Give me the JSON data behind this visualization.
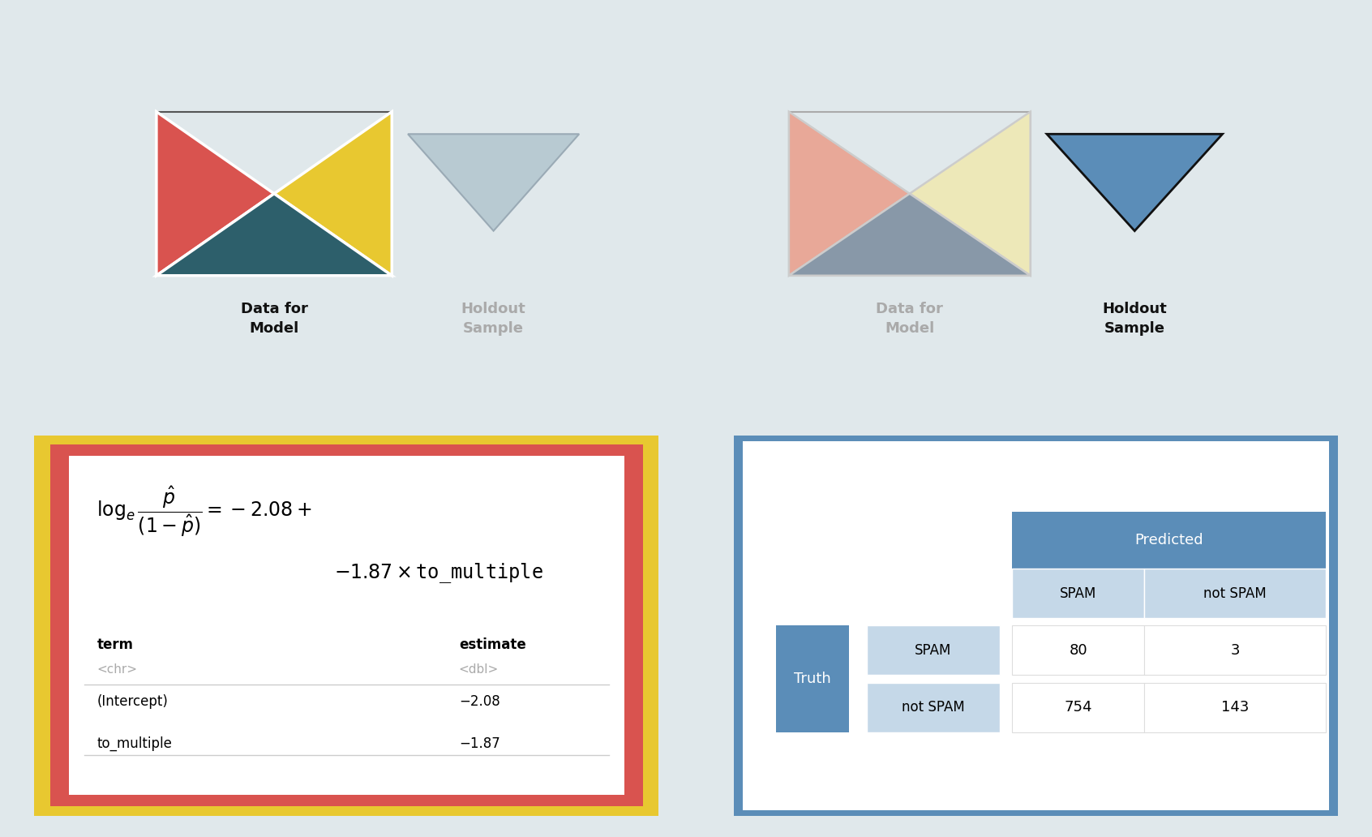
{
  "bg_color": "#e0e8eb",
  "panel_bg": "#e8e8e8",
  "left_panel": {
    "tangram_colors": {
      "red": "#d9534f",
      "yellow": "#e8c830",
      "teal": "#2d5f6b"
    },
    "holdout_color": "#b8cad2",
    "holdout_border": "#9aaab5",
    "data_for_model_text": "Data for\nModel",
    "holdout_text": "Holdout\nSample",
    "data_text_color": "#111111",
    "holdout_text_color": "#aaaaaa"
  },
  "right_panel": {
    "tangram_colors": {
      "red": "#e8a898",
      "yellow": "#ede8b8",
      "teal": "#8898a8"
    },
    "holdout_color": "#5b8db8",
    "holdout_border": "#111111",
    "data_for_model_text": "Data for\nModel",
    "holdout_text": "Holdout\nSample",
    "data_text_color": "#aaaaaa",
    "holdout_text_color": "#111111"
  },
  "outer_border_color": "#e8c830",
  "inner_border_color": "#d9534f",
  "right_box_border_color": "#5b8db8",
  "confusion_header": "Predicted",
  "confusion_col_labels": [
    "SPAM",
    "not SPAM"
  ],
  "confusion_row_label": "Truth",
  "confusion_row_labels": [
    "SPAM",
    "not SPAM"
  ],
  "confusion_values": [
    [
      80,
      3
    ],
    [
      754,
      143
    ]
  ],
  "confusion_header_color": "#5b8db8",
  "confusion_cell_color": "#c5d8e8"
}
